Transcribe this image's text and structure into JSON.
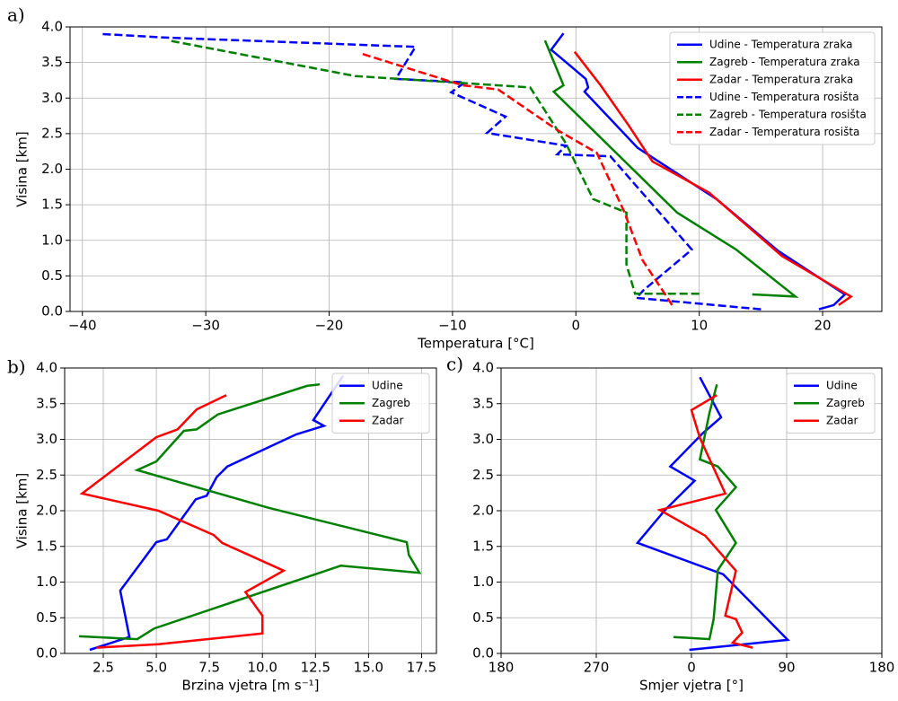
{
  "chart_data": [
    {
      "type": "line",
      "panel_label": "a)",
      "xlabel": "Temperatura [°C]",
      "ylabel": "Visina [km]",
      "xlim": [
        -41,
        24.8
      ],
      "ylim": [
        0,
        4
      ],
      "xticks": [
        {
          "value": -40,
          "label": "−40"
        },
        {
          "value": -30,
          "label": "−30"
        },
        {
          "value": -20,
          "label": "−20"
        },
        {
          "value": -10,
          "label": "−10"
        },
        0,
        10,
        20
      ],
      "yticks": [
        {
          "value": 0,
          "label": "0.0"
        },
        0.5,
        {
          "value": 1,
          "label": "1.0"
        },
        1.5,
        {
          "value": 2,
          "label": "2.0"
        },
        2.5,
        {
          "value": 3,
          "label": "3.0"
        },
        3.5,
        {
          "value": 4,
          "label": "4.0"
        }
      ],
      "grid": true,
      "legend": "upper right",
      "series": [
        {
          "name": "Udine - Temperatura zraka",
          "color": "#0000ff",
          "linestyle": "solid",
          "x": [
            19.7,
            20.9,
            21.8,
            16.4,
            11.4,
            5.0,
            0.7,
            1.0,
            0.8,
            -2.0,
            -1.0
          ],
          "y": [
            0.03,
            0.09,
            0.24,
            0.85,
            1.58,
            2.3,
            3.09,
            3.15,
            3.27,
            3.68,
            3.91
          ]
        },
        {
          "name": "Zagreb - Temperatura zraka",
          "color": "#008000",
          "linestyle": "solid",
          "x": [
            14.3,
            17.8,
            13.0,
            8.2,
            -1.8,
            -1.0,
            -2.5
          ],
          "y": [
            0.24,
            0.21,
            0.87,
            1.39,
            3.09,
            3.18,
            3.81
          ]
        },
        {
          "name": "Zadar - Temperatura zraka",
          "color": "#ff0000",
          "linestyle": "solid",
          "x": [
            21.3,
            22.3,
            16.7,
            10.8,
            6.2,
            4.3,
            2.0,
            -0.1
          ],
          "y": [
            0.09,
            0.21,
            0.78,
            1.67,
            2.11,
            2.61,
            3.18,
            3.65
          ]
        },
        {
          "name": "Udine - Temperatura rosišta",
          "color": "#0000ff",
          "linestyle": "dashed",
          "x": [
            15.0,
            4.9,
            5.5,
            9.4,
            2.8,
            -1.5,
            -0.8,
            -7.2,
            -5.7,
            -10.1,
            -9.0,
            -14.6,
            -13.0,
            -33.2,
            -38.4
          ],
          "y": [
            0.03,
            0.19,
            0.3,
            0.87,
            2.18,
            2.21,
            2.33,
            2.51,
            2.74,
            3.08,
            3.22,
            3.27,
            3.72,
            3.85,
            3.9
          ]
        },
        {
          "name": "Zagreb - Temperatura rosišta",
          "color": "#008000",
          "linestyle": "dashed",
          "x": [
            10.0,
            4.8,
            4.1,
            4.1,
            1.4,
            -0.8,
            -3.7,
            -17.9,
            -33.0
          ],
          "y": [
            0.25,
            0.25,
            0.66,
            1.39,
            1.58,
            2.36,
            3.15,
            3.31,
            3.81
          ]
        },
        {
          "name": "Zadar - Temperatura rosišta",
          "color": "#ff0000",
          "linestyle": "dashed",
          "x": [
            7.8,
            7.2,
            5.4,
            3.9,
            1.7,
            -1.5,
            -6.3,
            -9.2,
            -17.3
          ],
          "y": [
            0.09,
            0.25,
            0.72,
            1.41,
            2.23,
            2.55,
            3.12,
            3.18,
            3.62
          ]
        }
      ]
    },
    {
      "type": "line",
      "panel_label": "b)",
      "xlabel": "Brzina vjetra [m s⁻¹]",
      "ylabel": "Visina [km]",
      "xlim": [
        0.68,
        18.2
      ],
      "ylim": [
        0,
        4
      ],
      "xticks": [
        2.5,
        {
          "value": 5,
          "label": "5.0"
        },
        7.5,
        {
          "value": 10,
          "label": "10.0"
        },
        12.5,
        {
          "value": 15,
          "label": "15.0"
        },
        17.5
      ],
      "yticks": [
        {
          "value": 0,
          "label": "0.0"
        },
        0.5,
        {
          "value": 1,
          "label": "1.0"
        },
        1.5,
        {
          "value": 2,
          "label": "2.0"
        },
        2.5,
        {
          "value": 3,
          "label": "3.0"
        },
        3.5,
        {
          "value": 4,
          "label": "4.0"
        }
      ],
      "grid": true,
      "legend": "upper right",
      "series": [
        {
          "name": "Udine",
          "color": "#0000ff",
          "linestyle": "solid",
          "x": [
            1.86,
            3.73,
            3.3,
            5.0,
            5.5,
            6.86,
            7.37,
            7.84,
            8.35,
            11.6,
            12.9,
            12.4,
            13.8
          ],
          "y": [
            0.05,
            0.23,
            0.88,
            1.56,
            1.6,
            2.16,
            2.21,
            2.47,
            2.62,
            3.07,
            3.19,
            3.27,
            3.89
          ]
        },
        {
          "name": "Zagreb",
          "color": "#008000",
          "linestyle": "solid",
          "x": [
            1.36,
            4.1,
            4.9,
            13.7,
            17.4,
            16.9,
            16.8,
            10.3,
            6.9,
            4.1,
            5.0,
            6.3,
            6.9,
            7.9,
            12.1,
            12.7
          ],
          "y": [
            0.24,
            0.2,
            0.35,
            1.23,
            1.13,
            1.38,
            1.56,
            2.04,
            2.33,
            2.57,
            2.69,
            3.12,
            3.14,
            3.35,
            3.75,
            3.77
          ]
        },
        {
          "name": "Zadar",
          "color": "#ff0000",
          "linestyle": "solid",
          "x": [
            2.16,
            5.1,
            7.1,
            10.0,
            10.0,
            9.2,
            11.0,
            8.1,
            7.7,
            5.1,
            1.5,
            5.0,
            6.0,
            6.9,
            8.3
          ],
          "y": [
            0.08,
            0.13,
            0.19,
            0.28,
            0.53,
            0.86,
            1.16,
            1.55,
            1.66,
            2.0,
            2.24,
            3.03,
            3.14,
            3.42,
            3.62
          ]
        }
      ]
    },
    {
      "type": "line",
      "panel_label": "c)",
      "xlabel": "Smjer vjetra [°]",
      "xlim": [
        -180,
        180
      ],
      "ylim": [
        0,
        4
      ],
      "xticks": [
        {
          "value": -180,
          "label": "180"
        },
        {
          "value": -90,
          "label": "270"
        },
        0,
        90,
        180
      ],
      "yticks": [
        {
          "value": 0,
          "label": "0.0"
        },
        0.5,
        {
          "value": 1,
          "label": "1.0"
        },
        1.5,
        {
          "value": 2,
          "label": "2.0"
        },
        2.5,
        {
          "value": 3,
          "label": "3.0"
        },
        3.5,
        {
          "value": 4,
          "label": "4.0"
        }
      ],
      "grid": true,
      "legend": "upper right",
      "series": [
        {
          "name": "Udine",
          "color": "#0000ff",
          "linestyle": "solid",
          "x": [
            -2,
            91,
            30,
            -51,
            -25,
            3,
            -20,
            11,
            28,
            8
          ],
          "y": [
            0.05,
            0.19,
            1.11,
            1.55,
            2.01,
            2.42,
            2.62,
            3.09,
            3.31,
            3.87
          ]
        },
        {
          "name": "Zagreb",
          "color": "#008000",
          "linestyle": "solid",
          "x": [
            -17,
            17,
            21,
            25,
            42,
            23,
            42,
            25,
            8,
            17,
            24
          ],
          "y": [
            0.23,
            0.2,
            0.48,
            1.17,
            1.55,
            2.01,
            2.33,
            2.62,
            2.72,
            3.37,
            3.77
          ]
        },
        {
          "name": "Zadar",
          "color": "#ff0000",
          "linestyle": "solid",
          "x": [
            58,
            39,
            48,
            42,
            32,
            42,
            13,
            -30,
            32,
            8,
            0,
            24
          ],
          "y": [
            0.08,
            0.15,
            0.29,
            0.48,
            0.53,
            1.16,
            1.65,
            2.01,
            2.24,
            3.02,
            3.41,
            3.62
          ]
        }
      ]
    }
  ]
}
